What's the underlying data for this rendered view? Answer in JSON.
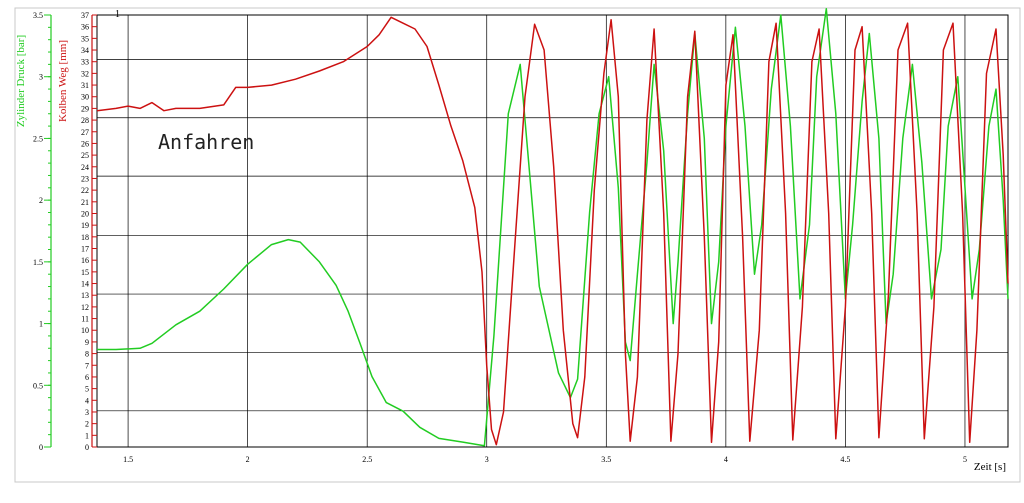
{
  "chart_data": {
    "type": "line",
    "annotation": "Anfahren",
    "corner_mark": "1",
    "xlabel": "Zeit [s]",
    "xlim": [
      1.37,
      5.18
    ],
    "x_ticks": [
      1.5,
      2,
      2.5,
      3,
      3.5,
      4,
      4.5,
      5
    ],
    "x_tick_labels": [
      "1.5",
      "2",
      "2.5",
      "3",
      "3.5",
      "4",
      "4.5",
      "5"
    ],
    "grid": true,
    "axes": {
      "pressure": {
        "label": "Zylinder Druck [bar]",
        "lim": [
          0,
          3.5
        ],
        "ticks": [
          0,
          0.5,
          1,
          1.5,
          2,
          2.5,
          3,
          3.5
        ],
        "tick_labels": [
          "0",
          "0.5",
          "1",
          "1.5",
          "2",
          "2.5",
          "3",
          "3.5"
        ],
        "color": "#22cc22"
      },
      "travel": {
        "label": "Kolben Weg [mm]",
        "lim": [
          0,
          37
        ],
        "ticks": [
          0,
          1,
          2,
          3,
          4,
          5,
          6,
          7,
          8,
          9,
          10,
          11,
          12,
          13,
          14,
          15,
          16,
          17,
          18,
          19,
          20,
          21,
          22,
          23,
          24,
          25,
          26,
          27,
          28,
          29,
          30,
          31,
          32,
          33,
          34,
          35,
          36,
          37
        ],
        "tick_labels": [
          "0",
          "1",
          "2",
          "3",
          "4",
          "5",
          "6",
          "7",
          "8",
          "9",
          "10",
          "11",
          "12",
          "13",
          "14",
          "15",
          "16",
          "17",
          "18",
          "19",
          "20",
          "21",
          "22",
          "23",
          "24",
          "25",
          "26",
          "27",
          "28",
          "29",
          "30",
          "31",
          "32",
          "33",
          "34",
          "35",
          "36",
          "37"
        ],
        "color": "#cc1111"
      }
    },
    "series": [
      {
        "axis": "pressure",
        "color": "#22cc22",
        "points": [
          [
            1.37,
            0.79
          ],
          [
            1.45,
            0.79
          ],
          [
            1.55,
            0.8
          ],
          [
            1.6,
            0.84
          ],
          [
            1.7,
            0.99
          ],
          [
            1.8,
            1.1
          ],
          [
            1.9,
            1.28
          ],
          [
            2.0,
            1.48
          ],
          [
            2.1,
            1.64
          ],
          [
            2.17,
            1.68
          ],
          [
            2.22,
            1.66
          ],
          [
            2.3,
            1.5
          ],
          [
            2.37,
            1.31
          ],
          [
            2.42,
            1.1
          ],
          [
            2.47,
            0.84
          ],
          [
            2.52,
            0.57
          ],
          [
            2.58,
            0.36
          ],
          [
            2.65,
            0.29
          ],
          [
            2.72,
            0.16
          ],
          [
            2.8,
            0.07
          ],
          [
            2.9,
            0.04
          ],
          [
            2.99,
            0.01
          ],
          [
            3.03,
            0.9
          ],
          [
            3.09,
            2.7
          ],
          [
            3.14,
            3.1
          ],
          [
            3.18,
            2.2
          ],
          [
            3.22,
            1.3
          ],
          [
            3.3,
            0.6
          ],
          [
            3.35,
            0.4
          ],
          [
            3.38,
            0.55
          ],
          [
            3.43,
            1.9
          ],
          [
            3.47,
            2.7
          ],
          [
            3.51,
            3.0
          ],
          [
            3.55,
            2.1
          ],
          [
            3.58,
            0.85
          ],
          [
            3.6,
            0.7
          ],
          [
            3.63,
            1.4
          ],
          [
            3.67,
            2.3
          ],
          [
            3.7,
            3.1
          ],
          [
            3.74,
            2.4
          ],
          [
            3.78,
            1.0
          ],
          [
            3.8,
            1.5
          ],
          [
            3.84,
            2.7
          ],
          [
            3.87,
            3.35
          ],
          [
            3.91,
            2.5
          ],
          [
            3.94,
            1.0
          ],
          [
            3.97,
            1.5
          ],
          [
            4.0,
            2.6
          ],
          [
            4.04,
            3.4
          ],
          [
            4.08,
            2.6
          ],
          [
            4.12,
            1.4
          ],
          [
            4.15,
            1.8
          ],
          [
            4.19,
            2.9
          ],
          [
            4.23,
            3.5
          ],
          [
            4.27,
            2.6
          ],
          [
            4.31,
            1.2
          ],
          [
            4.35,
            1.8
          ],
          [
            4.38,
            3.0
          ],
          [
            4.42,
            3.55
          ],
          [
            4.46,
            2.7
          ],
          [
            4.5,
            1.2
          ],
          [
            4.53,
            1.8
          ],
          [
            4.57,
            2.8
          ],
          [
            4.6,
            3.35
          ],
          [
            4.64,
            2.5
          ],
          [
            4.67,
            1.0
          ],
          [
            4.7,
            1.4
          ],
          [
            4.74,
            2.5
          ],
          [
            4.78,
            3.1
          ],
          [
            4.82,
            2.3
          ],
          [
            4.86,
            1.2
          ],
          [
            4.9,
            1.6
          ],
          [
            4.93,
            2.6
          ],
          [
            4.97,
            3.0
          ],
          [
            5.0,
            2.1
          ],
          [
            5.03,
            1.2
          ],
          [
            5.06,
            1.6
          ],
          [
            5.1,
            2.6
          ],
          [
            5.13,
            2.9
          ],
          [
            5.16,
            2.0
          ],
          [
            5.18,
            1.2
          ]
        ]
      },
      {
        "axis": "travel",
        "color": "#cc1111",
        "points": [
          [
            1.37,
            28.8
          ],
          [
            1.45,
            29.0
          ],
          [
            1.5,
            29.2
          ],
          [
            1.55,
            29.0
          ],
          [
            1.6,
            29.5
          ],
          [
            1.65,
            28.8
          ],
          [
            1.7,
            29.0
          ],
          [
            1.8,
            29.0
          ],
          [
            1.9,
            29.3
          ],
          [
            1.95,
            30.8
          ],
          [
            2.0,
            30.8
          ],
          [
            2.1,
            31.0
          ],
          [
            2.2,
            31.5
          ],
          [
            2.3,
            32.2
          ],
          [
            2.4,
            33.0
          ],
          [
            2.5,
            34.3
          ],
          [
            2.55,
            35.3
          ],
          [
            2.6,
            36.8
          ],
          [
            2.65,
            36.3
          ],
          [
            2.7,
            35.8
          ],
          [
            2.75,
            34.3
          ],
          [
            2.8,
            31.0
          ],
          [
            2.85,
            27.5
          ],
          [
            2.9,
            24.5
          ],
          [
            2.95,
            20.5
          ],
          [
            2.98,
            15.0
          ],
          [
            3.0,
            7.0
          ],
          [
            3.02,
            1.5
          ],
          [
            3.04,
            0.2
          ],
          [
            3.07,
            3.0
          ],
          [
            3.12,
            18.0
          ],
          [
            3.16,
            30.0
          ],
          [
            3.2,
            36.2
          ],
          [
            3.24,
            34.0
          ],
          [
            3.28,
            24.0
          ],
          [
            3.32,
            10.0
          ],
          [
            3.36,
            2.0
          ],
          [
            3.38,
            0.8
          ],
          [
            3.41,
            6.0
          ],
          [
            3.45,
            22.0
          ],
          [
            3.49,
            32.0
          ],
          [
            3.52,
            36.6
          ],
          [
            3.55,
            30.0
          ],
          [
            3.58,
            8.0
          ],
          [
            3.6,
            0.5
          ],
          [
            3.63,
            6.0
          ],
          [
            3.67,
            28.0
          ],
          [
            3.7,
            35.8
          ],
          [
            3.74,
            20.0
          ],
          [
            3.77,
            0.5
          ],
          [
            3.8,
            8.0
          ],
          [
            3.84,
            30.0
          ],
          [
            3.87,
            35.6
          ],
          [
            3.91,
            18.0
          ],
          [
            3.94,
            0.4
          ],
          [
            3.97,
            9.0
          ],
          [
            4.0,
            31.0
          ],
          [
            4.03,
            35.3
          ],
          [
            4.07,
            18.0
          ],
          [
            4.1,
            0.5
          ],
          [
            4.14,
            10.0
          ],
          [
            4.18,
            33.0
          ],
          [
            4.21,
            36.3
          ],
          [
            4.25,
            20.0
          ],
          [
            4.28,
            0.6
          ],
          [
            4.32,
            12.0
          ],
          [
            4.36,
            33.0
          ],
          [
            4.39,
            35.8
          ],
          [
            4.43,
            20.0
          ],
          [
            4.46,
            0.7
          ],
          [
            4.5,
            12.0
          ],
          [
            4.54,
            34.0
          ],
          [
            4.57,
            36.0
          ],
          [
            4.61,
            20.0
          ],
          [
            4.64,
            0.8
          ],
          [
            4.68,
            13.0
          ],
          [
            4.72,
            34.0
          ],
          [
            4.76,
            36.3
          ],
          [
            4.8,
            20.0
          ],
          [
            4.83,
            0.7
          ],
          [
            4.87,
            12.0
          ],
          [
            4.91,
            34.0
          ],
          [
            4.95,
            36.3
          ],
          [
            4.99,
            20.0
          ],
          [
            5.02,
            0.4
          ],
          [
            5.05,
            10.0
          ],
          [
            5.09,
            32.0
          ],
          [
            5.13,
            35.8
          ],
          [
            5.16,
            25.0
          ],
          [
            5.18,
            14.0
          ]
        ]
      }
    ]
  }
}
